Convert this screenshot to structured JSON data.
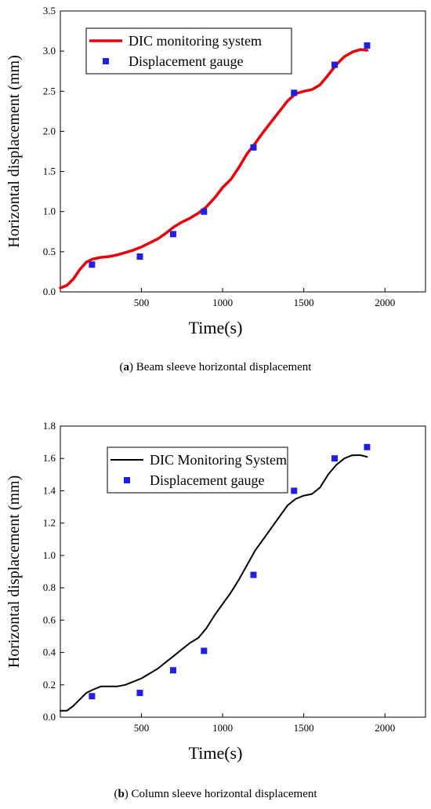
{
  "chart_data": [
    {
      "type": "line",
      "panel": "a",
      "caption_letter": "a",
      "caption_text": " Beam sleeve horizontal displacement",
      "xlabel": "Time(s)",
      "ylabel": "Horizontal displacement (mm)",
      "xlim": [
        0,
        2250
      ],
      "ylim": [
        0,
        3.5
      ],
      "xticks": [
        500,
        1000,
        1500,
        2000
      ],
      "yticks": [
        0.0,
        0.5,
        1.0,
        1.5,
        2.0,
        2.5,
        3.0,
        3.5
      ],
      "ytick_labels": [
        "0.0",
        "0.5",
        "1.0",
        "1.5",
        "2.0",
        "2.5",
        "3.0",
        "3.5"
      ],
      "legend_position": "top-left",
      "series": [
        {
          "name": "DIC monitoring system",
          "kind": "line",
          "color": "#e8000b",
          "x": [
            0,
            40,
            80,
            120,
            160,
            200,
            250,
            300,
            350,
            400,
            450,
            500,
            550,
            600,
            650,
            700,
            750,
            800,
            850,
            900,
            950,
            1000,
            1050,
            1100,
            1150,
            1200,
            1250,
            1300,
            1350,
            1400,
            1450,
            1500,
            1550,
            1600,
            1650,
            1700,
            1750,
            1800,
            1850,
            1890
          ],
          "y": [
            0.05,
            0.08,
            0.16,
            0.28,
            0.37,
            0.41,
            0.43,
            0.44,
            0.46,
            0.49,
            0.52,
            0.56,
            0.61,
            0.66,
            0.73,
            0.81,
            0.87,
            0.92,
            0.98,
            1.06,
            1.17,
            1.3,
            1.4,
            1.55,
            1.72,
            1.85,
            1.99,
            2.12,
            2.25,
            2.38,
            2.47,
            2.5,
            2.52,
            2.58,
            2.7,
            2.83,
            2.93,
            2.99,
            3.02,
            3.01
          ]
        },
        {
          "name": "Displacement gauge",
          "kind": "scatter",
          "color": "#1f1fe8",
          "x": [
            195,
            490,
            695,
            885,
            1190,
            1440,
            1690,
            1890
          ],
          "y": [
            0.34,
            0.44,
            0.72,
            1.0,
            1.8,
            2.48,
            2.83,
            3.07
          ]
        }
      ]
    },
    {
      "type": "line",
      "panel": "b",
      "caption_letter": "b",
      "caption_text": " Column sleeve horizontal displacement",
      "xlabel": "Time(s)",
      "ylabel": "Horizontal displacement (mm)",
      "xlim": [
        0,
        2250
      ],
      "ylim": [
        0,
        1.8
      ],
      "xticks": [
        500,
        1000,
        1500,
        2000
      ],
      "yticks": [
        0.0,
        0.2,
        0.4,
        0.6,
        0.8,
        1.0,
        1.2,
        1.4,
        1.6,
        1.8
      ],
      "ytick_labels": [
        "0.0",
        "0.2",
        "0.4",
        "0.6",
        "0.8",
        "1.0",
        "1.2",
        "1.4",
        "1.6",
        "1.8"
      ],
      "legend_position": "top-left",
      "series": [
        {
          "name": "DIC Monitoring System",
          "kind": "line",
          "color": "#000000",
          "x": [
            0,
            40,
            80,
            120,
            160,
            200,
            250,
            300,
            350,
            400,
            450,
            500,
            550,
            600,
            650,
            700,
            750,
            800,
            850,
            900,
            950,
            1000,
            1050,
            1100,
            1150,
            1200,
            1250,
            1300,
            1350,
            1400,
            1450,
            1500,
            1550,
            1600,
            1650,
            1700,
            1750,
            1800,
            1850,
            1890
          ],
          "y": [
            0.04,
            0.04,
            0.07,
            0.11,
            0.15,
            0.17,
            0.19,
            0.19,
            0.19,
            0.2,
            0.22,
            0.24,
            0.27,
            0.3,
            0.34,
            0.38,
            0.42,
            0.46,
            0.49,
            0.55,
            0.63,
            0.7,
            0.77,
            0.85,
            0.94,
            1.03,
            1.1,
            1.17,
            1.24,
            1.31,
            1.35,
            1.37,
            1.38,
            1.42,
            1.5,
            1.56,
            1.6,
            1.62,
            1.62,
            1.61
          ]
        },
        {
          "name": "Displacement gauge",
          "kind": "scatter",
          "color": "#1f1fe8",
          "x": [
            195,
            490,
            695,
            885,
            1190,
            1440,
            1690,
            1890
          ],
          "y": [
            0.13,
            0.15,
            0.29,
            0.41,
            0.88,
            1.4,
            1.6,
            1.67
          ]
        }
      ]
    }
  ]
}
